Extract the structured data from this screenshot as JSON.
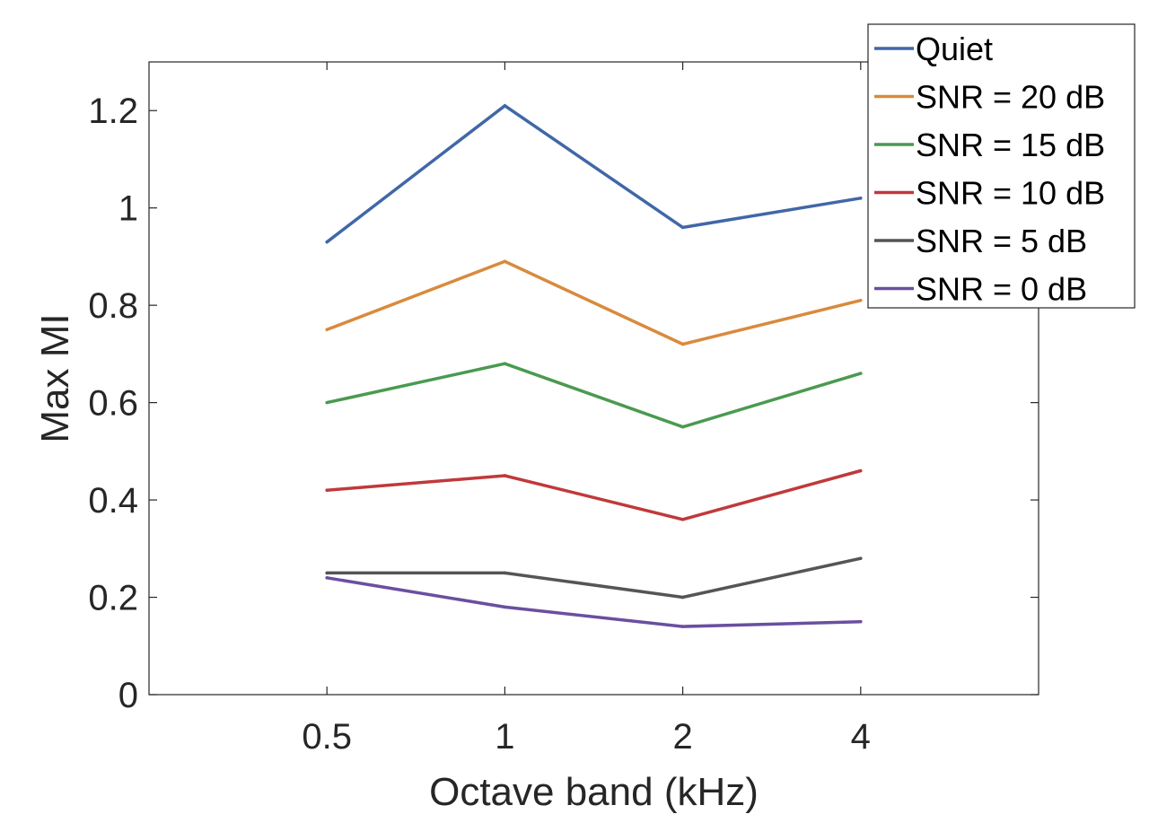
{
  "chart_data": {
    "type": "line",
    "title": "",
    "xlabel": "Octave band (kHz)",
    "ylabel": "Max MI",
    "categories": [
      "0.5",
      "1",
      "2",
      "4"
    ],
    "xlim": [
      0,
      5
    ],
    "ylim": [
      0,
      1.3
    ],
    "yticks": [
      0,
      0.2,
      0.4,
      0.6,
      0.8,
      1,
      1.2
    ],
    "ytick_labels": [
      "0",
      "0.2",
      "0.4",
      "0.6",
      "0.8",
      "1",
      "1.2"
    ],
    "grid": false,
    "legend_position": "top-right",
    "series": [
      {
        "name": "Quiet",
        "color": "#4067a8",
        "values": [
          0.93,
          1.21,
          0.96,
          1.02
        ]
      },
      {
        "name": "SNR = 20 dB",
        "color": "#d98a3d",
        "values": [
          0.75,
          0.89,
          0.72,
          0.81
        ]
      },
      {
        "name": "SNR = 15 dB",
        "color": "#4a9a50",
        "values": [
          0.6,
          0.68,
          0.55,
          0.66
        ]
      },
      {
        "name": "SNR = 10 dB",
        "color": "#c0393b",
        "values": [
          0.42,
          0.45,
          0.36,
          0.46
        ]
      },
      {
        "name": "SNR = 5 dB",
        "color": "#555555",
        "values": [
          0.25,
          0.25,
          0.2,
          0.28
        ]
      },
      {
        "name": "SNR = 0 dB",
        "color": "#6a4fa0",
        "values": [
          0.24,
          0.18,
          0.14,
          0.15
        ]
      }
    ]
  }
}
